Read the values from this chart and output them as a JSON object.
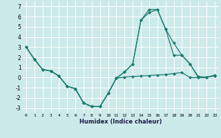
{
  "xlabel": "Humidex (Indice chaleur)",
  "background_color": "#cdeaea",
  "grid_color": "#ffffff",
  "line_color": "#1a7a6e",
  "line1_y": [
    3.0,
    1.8,
    0.8,
    0.65,
    0.15,
    -0.85,
    -1.1,
    -2.5,
    -2.85,
    -2.85,
    -1.55,
    -0.05,
    0.05,
    0.1,
    0.15,
    0.2,
    0.25,
    0.3,
    0.4,
    0.5,
    0.0,
    0.0,
    0.05,
    0.15
  ],
  "line2_y": [
    3.0,
    1.8,
    0.8,
    0.65,
    0.15,
    -0.85,
    -1.1,
    -2.5,
    -2.85,
    -2.85,
    -1.55,
    -0.05,
    0.55,
    1.35,
    5.65,
    6.4,
    6.7,
    4.8,
    3.4,
    2.2,
    1.3,
    0.1,
    0.05,
    0.2
  ],
  "line3_y": [
    3.0,
    1.8,
    0.8,
    0.65,
    0.15,
    -0.85,
    -1.1,
    -2.5,
    -2.85,
    -2.85,
    -1.55,
    -0.05,
    0.55,
    1.35,
    5.65,
    6.7,
    6.7,
    4.8,
    2.2,
    2.2,
    1.35,
    0.0,
    0.0,
    0.25
  ],
  "ylim": [
    -3.5,
    7.5
  ],
  "xlim": [
    -0.5,
    23.5
  ],
  "yticks": [
    -3,
    -2,
    -1,
    0,
    1,
    2,
    3,
    4,
    5,
    6,
    7
  ],
  "xticks": [
    0,
    1,
    2,
    3,
    4,
    5,
    6,
    7,
    8,
    9,
    10,
    11,
    12,
    13,
    14,
    15,
    16,
    17,
    18,
    19,
    20,
    21,
    22,
    23
  ],
  "markersize": 2.5,
  "linewidth": 0.9
}
